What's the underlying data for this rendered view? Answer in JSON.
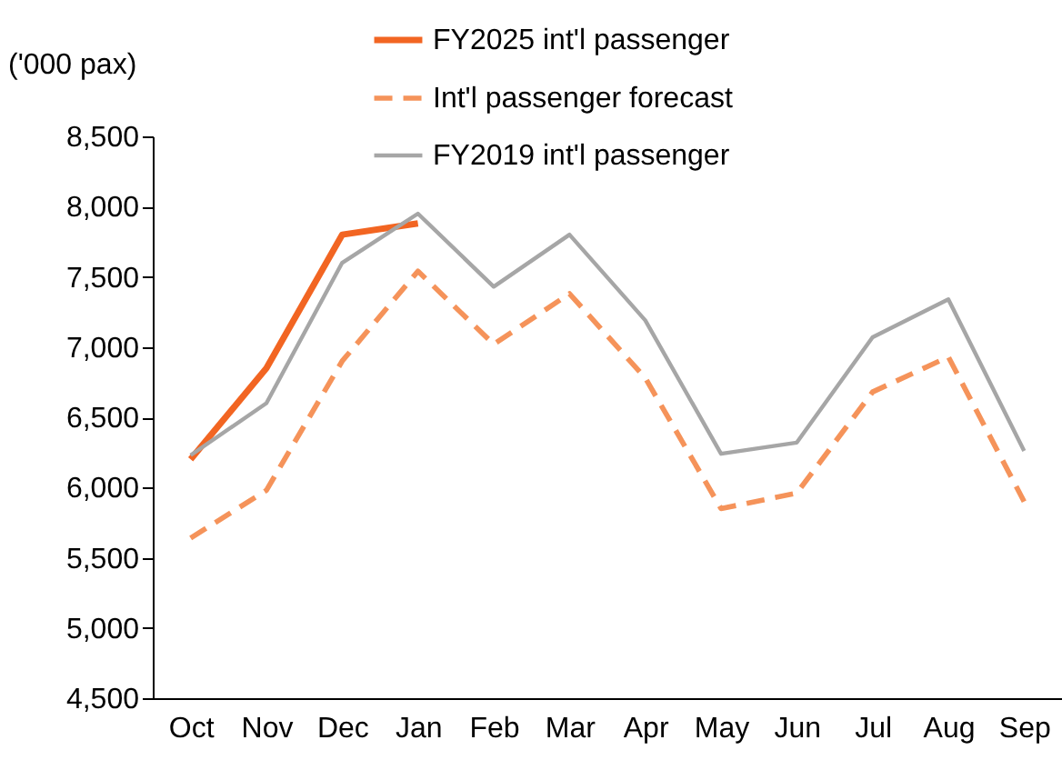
{
  "chart_data": {
    "type": "line",
    "ylabel": "('000 pax)",
    "categories": [
      "Oct",
      "Nov",
      "Dec",
      "Jan",
      "Feb",
      "Mar",
      "Apr",
      "May",
      "Jun",
      "Jul",
      "Aug",
      "Sep"
    ],
    "series": [
      {
        "name": "FY2025 int'l passenger",
        "color": "#f26522",
        "line_style": "solid",
        "values": [
          6200,
          6850,
          7800,
          7880,
          null,
          null,
          null,
          null,
          null,
          null,
          null,
          null
        ]
      },
      {
        "name": "Int'l passenger forecast",
        "color": "#f5935a",
        "line_style": "dashed",
        "values": [
          5640,
          5980,
          6900,
          7540,
          7020,
          7380,
          6780,
          5850,
          5960,
          6680,
          6930,
          5900
        ]
      },
      {
        "name": "FY2019 int'l passenger",
        "color": "#a6a6a6",
        "line_style": "solid",
        "values": [
          6230,
          6600,
          7600,
          7950,
          7430,
          7800,
          7190,
          6240,
          6320,
          7070,
          7340,
          6260
        ]
      }
    ],
    "ylim": [
      4500,
      8500
    ],
    "yticks": [
      {
        "value": 4500,
        "label": "4,500"
      },
      {
        "value": 5000,
        "label": "5,000"
      },
      {
        "value": 5500,
        "label": "5,500"
      },
      {
        "value": 6000,
        "label": "6,000"
      },
      {
        "value": 6500,
        "label": "6,500"
      },
      {
        "value": 7000,
        "label": "7,000"
      },
      {
        "value": 7500,
        "label": "7,500"
      },
      {
        "value": 8000,
        "label": "8,000"
      },
      {
        "value": 8500,
        "label": "8,500"
      }
    ],
    "grid": false,
    "legend": "top",
    "marker": "none"
  }
}
